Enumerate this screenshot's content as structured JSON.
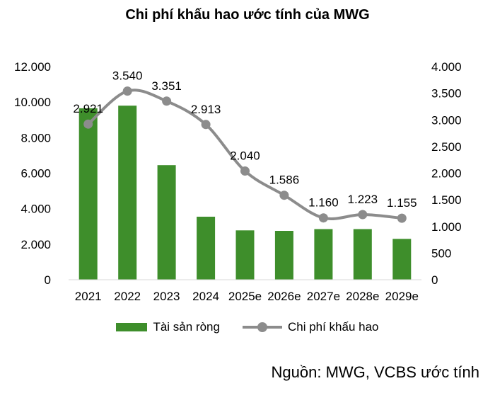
{
  "chart_data": {
    "type": "bar",
    "title": "Chi phí khấu hao ước tính của MWG",
    "categories": [
      "2021",
      "2022",
      "2023",
      "2024",
      "2025e",
      "2026e",
      "2027e",
      "2028e",
      "2029e"
    ],
    "series": [
      {
        "name": "Tài sản ròng",
        "type": "bar",
        "axis": "left",
        "color": "#3E8E2B",
        "values": [
          9650,
          9800,
          6450,
          3550,
          2780,
          2750,
          2850,
          2850,
          2300
        ]
      },
      {
        "name": "Chi phí khấu hao",
        "type": "line",
        "axis": "right",
        "color": "#8C8C8C",
        "values": [
          2921,
          3540,
          3351,
          2913,
          2040,
          1586,
          1160,
          1223,
          1155
        ],
        "labels": [
          "2.921",
          "3.540",
          "3.351",
          "2.913",
          "2.040",
          "1.586",
          "1.160",
          "1.223",
          "1.155"
        ]
      }
    ],
    "y_left": {
      "range": [
        0,
        12000
      ],
      "ticks": [
        0,
        2000,
        4000,
        6000,
        8000,
        10000,
        12000
      ],
      "tick_labels": [
        "0",
        "2.000",
        "4.000",
        "6.000",
        "8.000",
        "10.000",
        "12.000"
      ]
    },
    "y_right": {
      "range": [
        0,
        4000
      ],
      "ticks": [
        0,
        500,
        1000,
        1500,
        2000,
        2500,
        3000,
        3500,
        4000
      ],
      "tick_labels": [
        "0",
        "500",
        "1.000",
        "1.500",
        "2.000",
        "2.500",
        "3.000",
        "3.500",
        "4.000"
      ]
    },
    "grid": false,
    "legend_position": "bottom"
  },
  "source": "Nguồn: MWG, VCBS ước tính"
}
